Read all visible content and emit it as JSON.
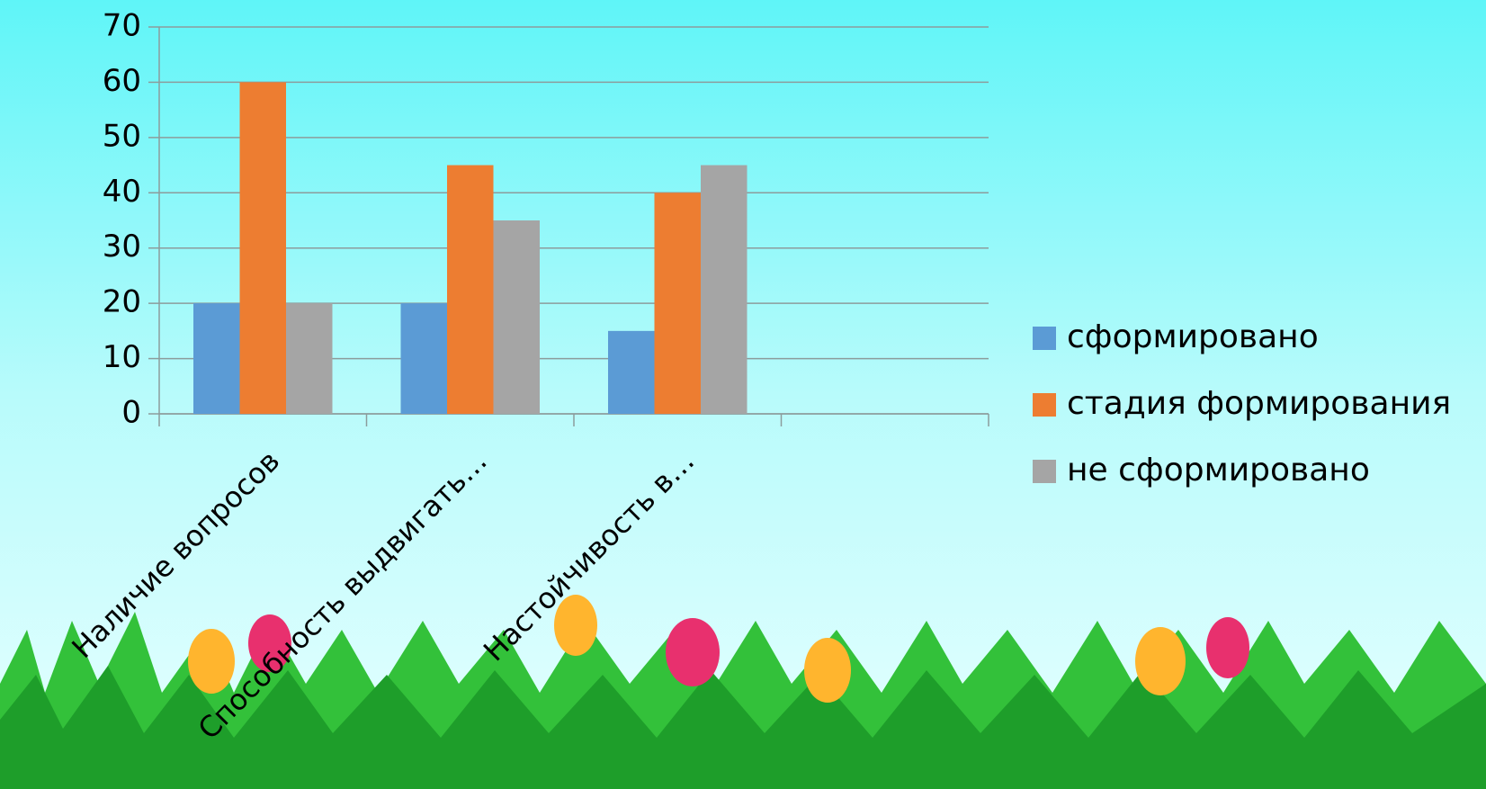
{
  "chart_data": {
    "type": "bar",
    "categories": [
      "Наличие вопросов",
      "Способность выдвигать…",
      "Настойчивость в…",
      null
    ],
    "series": [
      {
        "name": "сформировано",
        "color": "#5b9bd5",
        "values": [
          20,
          20,
          15,
          null
        ]
      },
      {
        "name": "стадия формирования",
        "color": "#ed7d31",
        "values": [
          60,
          45,
          40,
          null
        ]
      },
      {
        "name": "не сформировано",
        "color": "#a5a5a5",
        "values": [
          20,
          35,
          45,
          null
        ]
      }
    ],
    "ylim": [
      0,
      70
    ],
    "yticks": [
      0,
      10,
      20,
      30,
      40,
      50,
      60,
      70
    ],
    "grid": true,
    "legend": "right"
  }
}
